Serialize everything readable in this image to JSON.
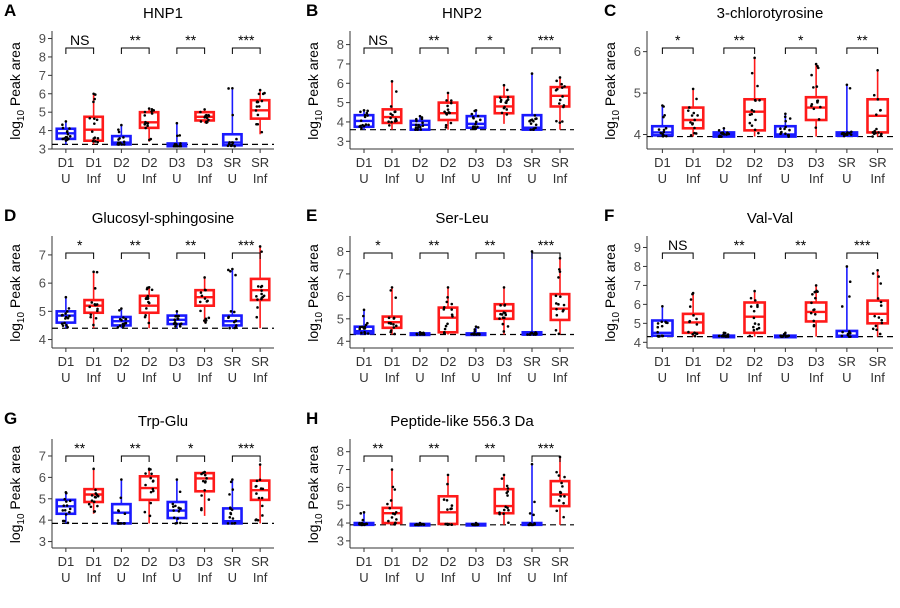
{
  "figure": {
    "y_axis_label": "log",
    "y_axis_label_subscript": "10",
    "y_axis_label_rest": " Peak area",
    "categories": [
      {
        "top": "D1",
        "bottom": "U"
      },
      {
        "top": "D1",
        "bottom": "Inf"
      },
      {
        "top": "D2",
        "bottom": "U"
      },
      {
        "top": "D2",
        "bottom": "Inf"
      },
      {
        "top": "D3",
        "bottom": "U"
      },
      {
        "top": "D3",
        "bottom": "Inf"
      },
      {
        "top": "SR",
        "bottom": "U"
      },
      {
        "top": "SR",
        "bottom": "Inf"
      }
    ],
    "colors": {
      "uninfected": "#1a1aff",
      "infected": "#ff1a1a",
      "points": "#000000",
      "threshold": "#000000"
    }
  },
  "chart_data": [
    {
      "panel": "A",
      "title": "HNP1",
      "type": "box",
      "ylim": [
        3,
        9.3
      ],
      "yticks": [
        3,
        4,
        5,
        6,
        7,
        8,
        9
      ],
      "threshold": 3.25,
      "significance": [
        "NS",
        "**",
        "**",
        "***"
      ],
      "boxes": [
        {
          "q1": 3.55,
          "median": 3.85,
          "q3": 4.1,
          "wmin": 3.25,
          "wmax": 4.5
        },
        {
          "q1": 3.45,
          "median": 4.05,
          "q3": 4.75,
          "wmin": 3.25,
          "wmax": 6.0
        },
        {
          "q1": 3.25,
          "median": 3.35,
          "q3": 3.7,
          "wmin": 3.25,
          "wmax": 4.3
        },
        {
          "q1": 4.15,
          "median": 4.45,
          "q3": 5.0,
          "wmin": 3.4,
          "wmax": 5.2
        },
        {
          "q1": 3.15,
          "median": 3.2,
          "q3": 3.3,
          "wmin": 3.15,
          "wmax": 4.4
        },
        {
          "q1": 4.55,
          "median": 4.75,
          "q3": 5.0,
          "wmin": 4.4,
          "wmax": 5.15
        },
        {
          "q1": 3.2,
          "median": 3.35,
          "q3": 3.8,
          "wmin": 3.15,
          "wmax": 6.3
        },
        {
          "q1": 4.65,
          "median": 5.1,
          "q3": 5.65,
          "wmin": 3.8,
          "wmax": 6.2
        }
      ]
    },
    {
      "panel": "B",
      "title": "HNP2",
      "type": "box",
      "ylim": [
        2.6,
        8.6
      ],
      "yticks": [
        3,
        4,
        5,
        6,
        7,
        8
      ],
      "threshold": 3.6,
      "significance": [
        "NS",
        "**",
        "*",
        "***"
      ],
      "boxes": [
        {
          "q1": 3.75,
          "median": 4.05,
          "q3": 4.35,
          "wmin": 3.6,
          "wmax": 4.6
        },
        {
          "q1": 3.95,
          "median": 4.25,
          "q3": 4.65,
          "wmin": 3.6,
          "wmax": 6.1
        },
        {
          "q1": 3.6,
          "median": 3.85,
          "q3": 4.05,
          "wmin": 3.6,
          "wmax": 4.3
        },
        {
          "q1": 4.1,
          "median": 4.45,
          "q3": 5.0,
          "wmin": 3.6,
          "wmax": 5.5
        },
        {
          "q1": 3.7,
          "median": 3.9,
          "q3": 4.3,
          "wmin": 3.6,
          "wmax": 4.6
        },
        {
          "q1": 4.45,
          "median": 4.8,
          "q3": 5.3,
          "wmin": 3.9,
          "wmax": 5.9
        },
        {
          "q1": 3.6,
          "median": 3.7,
          "q3": 4.35,
          "wmin": 3.6,
          "wmax": 6.5
        },
        {
          "q1": 4.8,
          "median": 5.35,
          "q3": 5.8,
          "wmin": 3.6,
          "wmax": 6.3
        }
      ]
    },
    {
      "panel": "C",
      "title": "3-chlorotyrosine",
      "type": "box",
      "ylim": [
        3.65,
        6.45
      ],
      "yticks": [
        4,
        5,
        6
      ],
      "threshold": 3.95,
      "significance": [
        "*",
        "**",
        "*",
        "**"
      ],
      "boxes": [
        {
          "q1": 3.98,
          "median": 4.05,
          "q3": 4.2,
          "wmin": 3.95,
          "wmax": 4.7
        },
        {
          "q1": 4.15,
          "median": 4.35,
          "q3": 4.65,
          "wmin": 3.95,
          "wmax": 5.1
        },
        {
          "q1": 3.95,
          "median": 4.0,
          "q3": 4.05,
          "wmin": 3.95,
          "wmax": 4.15
        },
        {
          "q1": 4.1,
          "median": 4.55,
          "q3": 4.85,
          "wmin": 3.95,
          "wmax": 5.85
        },
        {
          "q1": 3.95,
          "median": 4.0,
          "q3": 4.2,
          "wmin": 3.95,
          "wmax": 4.5
        },
        {
          "q1": 4.35,
          "median": 4.65,
          "q3": 4.9,
          "wmin": 3.95,
          "wmax": 5.7
        },
        {
          "q1": 3.97,
          "median": 4.0,
          "q3": 4.05,
          "wmin": 3.95,
          "wmax": 5.2
        },
        {
          "q1": 4.05,
          "median": 4.45,
          "q3": 4.85,
          "wmin": 3.95,
          "wmax": 5.55
        }
      ]
    },
    {
      "panel": "D",
      "title": "Glucosyl-sphingosine",
      "type": "box",
      "ylim": [
        3.7,
        7.6
      ],
      "yticks": [
        4,
        5,
        6,
        7
      ],
      "threshold": 4.4,
      "significance": [
        "*",
        "**",
        "**",
        "***"
      ],
      "boxes": [
        {
          "q1": 4.6,
          "median": 4.85,
          "q3": 5.0,
          "wmin": 4.4,
          "wmax": 5.5
        },
        {
          "q1": 4.95,
          "median": 5.2,
          "q3": 5.4,
          "wmin": 4.4,
          "wmax": 6.4
        },
        {
          "q1": 4.5,
          "median": 4.65,
          "q3": 4.8,
          "wmin": 4.4,
          "wmax": 5.1
        },
        {
          "q1": 4.95,
          "median": 5.2,
          "q3": 5.55,
          "wmin": 4.4,
          "wmax": 5.85
        },
        {
          "q1": 4.55,
          "median": 4.7,
          "q3": 4.85,
          "wmin": 4.4,
          "wmax": 5.0
        },
        {
          "q1": 5.2,
          "median": 5.5,
          "q3": 5.75,
          "wmin": 4.6,
          "wmax": 6.2
        },
        {
          "q1": 4.5,
          "median": 4.65,
          "q3": 4.85,
          "wmin": 4.4,
          "wmax": 6.5
        },
        {
          "q1": 5.4,
          "median": 5.75,
          "q3": 6.15,
          "wmin": 4.4,
          "wmax": 7.3
        }
      ]
    },
    {
      "panel": "E",
      "title": "Ser-Leu",
      "type": "box",
      "ylim": [
        3.7,
        8.6
      ],
      "yticks": [
        4,
        5,
        6,
        7,
        8
      ],
      "threshold": 4.3,
      "significance": [
        "*",
        "**",
        "**",
        "***"
      ],
      "boxes": [
        {
          "q1": 4.35,
          "median": 4.45,
          "q3": 4.65,
          "wmin": 4.3,
          "wmax": 5.4
        },
        {
          "q1": 4.6,
          "median": 4.85,
          "q3": 5.1,
          "wmin": 4.3,
          "wmax": 6.4
        },
        {
          "q1": 4.3,
          "median": 4.3,
          "q3": 4.35,
          "wmin": 4.3,
          "wmax": 4.4
        },
        {
          "q1": 4.4,
          "median": 5.05,
          "q3": 5.5,
          "wmin": 4.3,
          "wmax": 6.4
        },
        {
          "q1": 4.3,
          "median": 4.3,
          "q3": 4.35,
          "wmin": 4.3,
          "wmax": 4.65
        },
        {
          "q1": 5.0,
          "median": 5.35,
          "q3": 5.65,
          "wmin": 4.3,
          "wmax": 6.4
        },
        {
          "q1": 4.3,
          "median": 4.3,
          "q3": 4.4,
          "wmin": 4.3,
          "wmax": 8.0
        },
        {
          "q1": 4.95,
          "median": 5.45,
          "q3": 6.1,
          "wmin": 4.3,
          "wmax": 7.7
        }
      ]
    },
    {
      "panel": "F",
      "title": "Val-Val",
      "type": "box",
      "ylim": [
        3.7,
        9.5
      ],
      "yticks": [
        4,
        5,
        6,
        7,
        8,
        9
      ],
      "threshold": 4.3,
      "significance": [
        "NS",
        "**",
        "**",
        "***"
      ],
      "boxes": [
        {
          "q1": 4.35,
          "median": 4.5,
          "q3": 5.15,
          "wmin": 4.3,
          "wmax": 5.9
        },
        {
          "q1": 4.5,
          "median": 5.05,
          "q3": 5.5,
          "wmin": 4.3,
          "wmax": 6.6
        },
        {
          "q1": 4.3,
          "median": 4.3,
          "q3": 4.35,
          "wmin": 4.3,
          "wmax": 4.5
        },
        {
          "q1": 4.5,
          "median": 5.35,
          "q3": 6.1,
          "wmin": 4.3,
          "wmax": 6.7
        },
        {
          "q1": 4.3,
          "median": 4.3,
          "q3": 4.35,
          "wmin": 4.3,
          "wmax": 4.5
        },
        {
          "q1": 5.1,
          "median": 5.6,
          "q3": 6.1,
          "wmin": 4.3,
          "wmax": 7.0
        },
        {
          "q1": 4.3,
          "median": 4.35,
          "q3": 4.6,
          "wmin": 4.3,
          "wmax": 8.0
        },
        {
          "q1": 5.0,
          "median": 5.5,
          "q3": 6.2,
          "wmin": 4.3,
          "wmax": 7.8
        }
      ]
    },
    {
      "panel": "G",
      "title": "Trp-Glu",
      "type": "box",
      "ylim": [
        2.7,
        7.7
      ],
      "yticks": [
        3,
        4,
        5,
        6,
        7
      ],
      "threshold": 3.85,
      "significance": [
        "**",
        "**",
        "*",
        "***"
      ],
      "boxes": [
        {
          "q1": 4.3,
          "median": 4.65,
          "q3": 4.95,
          "wmin": 3.85,
          "wmax": 5.3
        },
        {
          "q1": 4.85,
          "median": 5.2,
          "q3": 5.45,
          "wmin": 4.3,
          "wmax": 6.4
        },
        {
          "q1": 3.85,
          "median": 4.35,
          "q3": 4.75,
          "wmin": 3.85,
          "wmax": 5.9
        },
        {
          "q1": 4.95,
          "median": 5.5,
          "q3": 6.05,
          "wmin": 3.85,
          "wmax": 6.4
        },
        {
          "q1": 4.1,
          "median": 4.45,
          "q3": 4.85,
          "wmin": 3.85,
          "wmax": 5.9
        },
        {
          "q1": 5.35,
          "median": 5.95,
          "q3": 6.2,
          "wmin": 4.2,
          "wmax": 6.25
        },
        {
          "q1": 3.85,
          "median": 3.95,
          "q3": 4.55,
          "wmin": 3.85,
          "wmax": 5.9
        },
        {
          "q1": 4.95,
          "median": 5.4,
          "q3": 5.85,
          "wmin": 3.85,
          "wmax": 6.6
        }
      ]
    },
    {
      "panel": "H",
      "title": "Peptide-like 556.3 Da",
      "type": "box",
      "ylim": [
        2.6,
        8.6
      ],
      "yticks": [
        3,
        4,
        5,
        6,
        7,
        8
      ],
      "threshold": 3.9,
      "significance": [
        "**",
        "**",
        "**",
        "***"
      ],
      "boxes": [
        {
          "q1": 3.9,
          "median": 3.9,
          "q3": 4.0,
          "wmin": 3.9,
          "wmax": 4.6
        },
        {
          "q1": 4.0,
          "median": 4.55,
          "q3": 4.85,
          "wmin": 3.9,
          "wmax": 7.0
        },
        {
          "q1": 3.9,
          "median": 3.9,
          "q3": 3.95,
          "wmin": 3.9,
          "wmax": 4.0
        },
        {
          "q1": 3.95,
          "median": 4.6,
          "q3": 5.5,
          "wmin": 3.9,
          "wmax": 6.7
        },
        {
          "q1": 3.9,
          "median": 3.9,
          "q3": 3.95,
          "wmin": 3.9,
          "wmax": 4.0
        },
        {
          "q1": 4.55,
          "median": 4.95,
          "q3": 5.9,
          "wmin": 3.9,
          "wmax": 6.7
        },
        {
          "q1": 3.9,
          "median": 3.9,
          "q3": 4.0,
          "wmin": 3.9,
          "wmax": 7.3
        },
        {
          "q1": 4.95,
          "median": 5.6,
          "q3": 6.35,
          "wmin": 3.9,
          "wmax": 7.7
        }
      ]
    }
  ]
}
